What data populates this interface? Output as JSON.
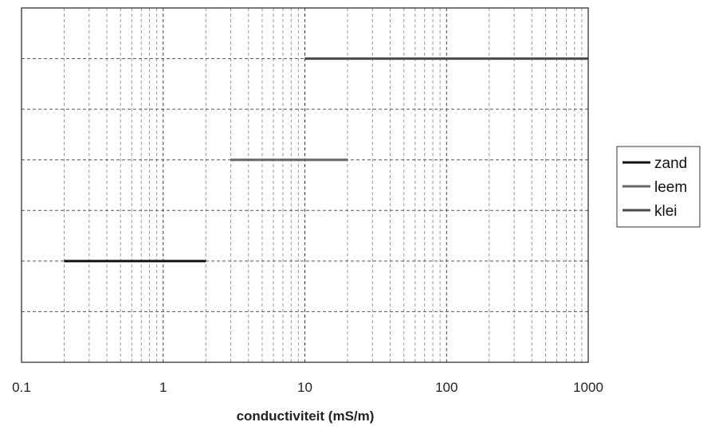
{
  "chart_data": {
    "type": "line",
    "title": "",
    "xlabel": "conductiviteit (mS/m)",
    "ylabel": "",
    "x_scale": "log",
    "xlim": [
      0.1,
      1000
    ],
    "x_ticks": [
      {
        "value": 0.1,
        "label": "0.1"
      },
      {
        "value": 1,
        "label": "1"
      },
      {
        "value": 10,
        "label": "10"
      },
      {
        "value": 100,
        "label": "100"
      },
      {
        "value": 1000,
        "label": "1000"
      }
    ],
    "ylim": [
      0,
      7
    ],
    "y_ticks_labeled": false,
    "grid": true,
    "legend_position": "right",
    "series": [
      {
        "name": "zand",
        "color": "#111111",
        "points": [
          {
            "x": 0.2,
            "y": 2
          },
          {
            "x": 2,
            "y": 2
          }
        ]
      },
      {
        "name": "leem",
        "color": "#666666",
        "points": [
          {
            "x": 3,
            "y": 4
          },
          {
            "x": 20,
            "y": 4
          }
        ]
      },
      {
        "name": "klei",
        "color": "#4a4a4a",
        "points": [
          {
            "x": 10,
            "y": 6
          },
          {
            "x": 1000,
            "y": 6
          }
        ]
      }
    ]
  }
}
